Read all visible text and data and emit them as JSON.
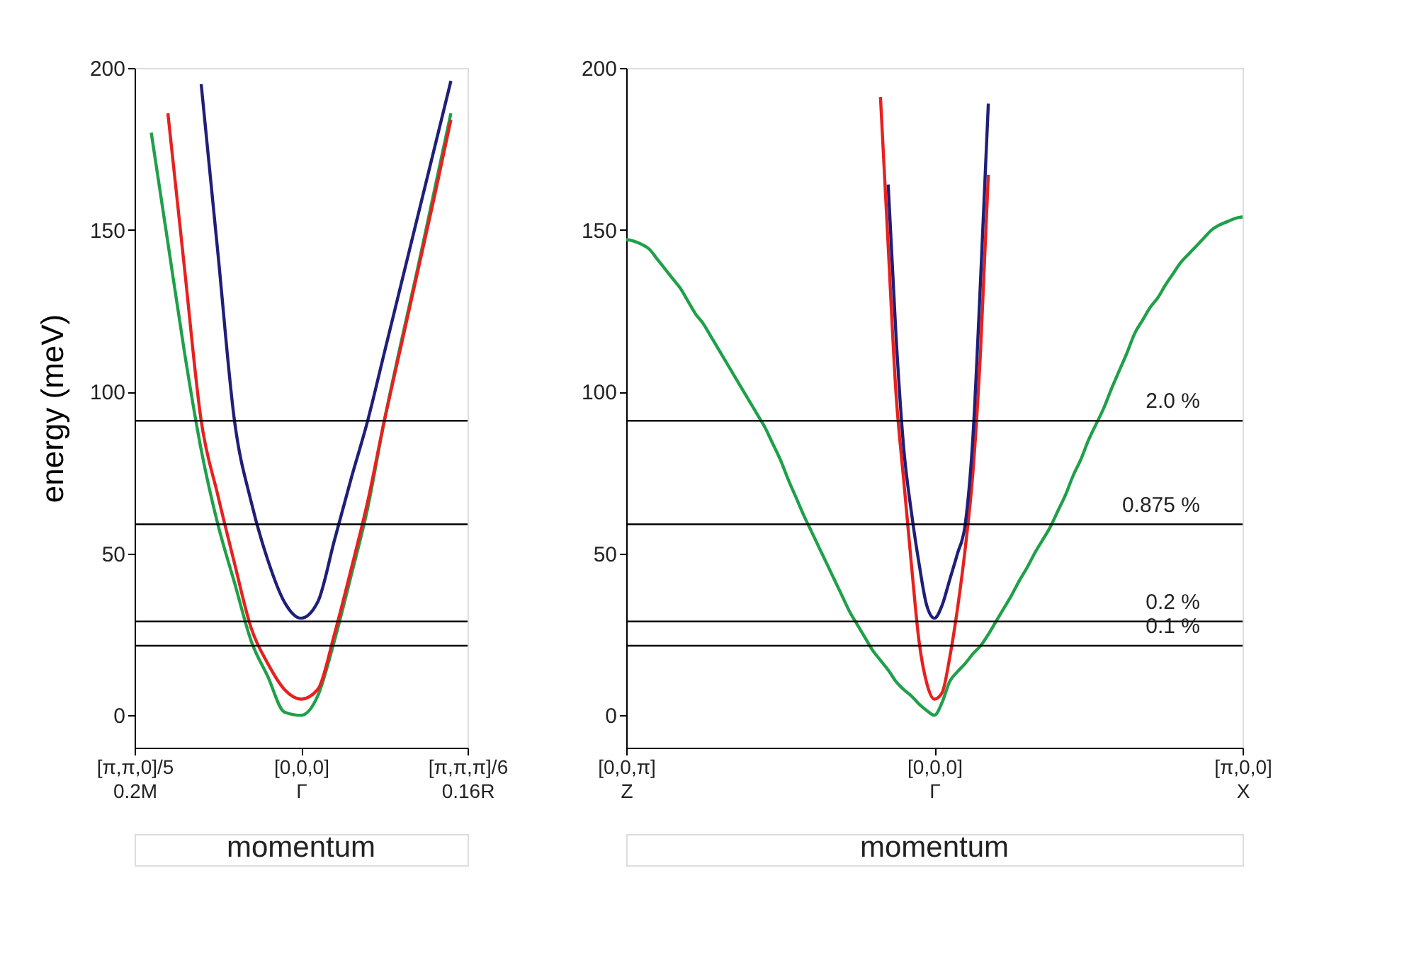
{
  "chart_data": [
    {
      "type": "line",
      "ylabel": "energy (meV)",
      "xlabel": "momentum",
      "ylim": [
        -10,
        200
      ],
      "yticks": [
        0,
        50,
        100,
        150,
        200
      ],
      "grid": false,
      "marker": "none",
      "line_style": "solid",
      "categories": [
        "[π,π,0]/5\n0.2M",
        null,
        null,
        null,
        null,
        null,
        null,
        null,
        null,
        null,
        "[0,0,0]\nΓ",
        null,
        null,
        null,
        null,
        null,
        null,
        null,
        null,
        null,
        "[π,π,π]/6\n0.16R"
      ],
      "series": [
        {
          "color": "#1fa04a",
          "values": [
            null,
            180,
            146,
            112,
            82,
            59,
            41,
            23,
            12,
            1,
            0,
            6,
            23,
            43,
            64,
            91,
            115,
            138,
            162,
            186,
            null
          ]
        },
        {
          "color": "#e8201e",
          "values": [
            null,
            null,
            186,
            138,
            91,
            68,
            47,
            27,
            16,
            8,
            5,
            8,
            25,
            45,
            66,
            91,
            114,
            137,
            160,
            184,
            null
          ]
        },
        {
          "color": "#1f1f7a",
          "values": [
            null,
            null,
            null,
            null,
            195,
            143,
            91,
            66,
            48,
            35,
            30,
            35,
            54,
            73,
            91,
            112,
            133,
            154,
            175,
            196,
            null
          ]
        }
      ],
      "ref_lines": [
        {
          "axis": "y",
          "value": 91
        },
        {
          "axis": "y",
          "value": 59
        },
        {
          "axis": "y",
          "value": 29
        },
        {
          "axis": "y",
          "value": 21.5
        }
      ]
    },
    {
      "type": "line",
      "xlabel": "momentum",
      "ylim": [
        -10,
        200
      ],
      "yticks": [
        0,
        50,
        100,
        150,
        200
      ],
      "grid": false,
      "marker": "none",
      "line_style": "solid",
      "categories": [
        "[0,0,π]\nZ",
        null,
        null,
        null,
        null,
        null,
        null,
        null,
        null,
        null,
        null,
        null,
        null,
        null,
        null,
        null,
        null,
        null,
        null,
        null,
        null,
        null,
        null,
        null,
        null,
        null,
        null,
        null,
        null,
        null,
        null,
        null,
        null,
        null,
        null,
        null,
        null,
        null,
        null,
        null,
        "[0,0,0]\nΓ",
        null,
        null,
        null,
        null,
        null,
        null,
        null,
        null,
        null,
        null,
        null,
        null,
        null,
        null,
        null,
        null,
        null,
        null,
        null,
        null,
        null,
        null,
        null,
        null,
        null,
        null,
        null,
        null,
        null,
        null,
        null,
        null,
        null,
        null,
        null,
        null,
        null,
        null,
        null,
        "[π,0,0]\nX"
      ],
      "series": [
        {
          "color": "#1fa04a",
          "values": [
            147,
            146.5,
            145.5,
            144,
            141,
            138,
            135,
            132,
            128,
            124,
            121,
            117,
            113,
            109,
            105,
            101,
            97,
            93,
            89,
            84,
            79,
            73,
            67.5,
            62,
            57,
            52,
            47,
            42,
            37,
            32,
            28,
            24,
            20,
            17,
            14,
            10.5,
            8,
            6,
            3.5,
            1.5,
            0,
            4,
            10.5,
            13.5,
            16,
            19,
            21.5,
            25,
            29,
            33,
            37,
            41.5,
            45.5,
            50,
            54,
            58,
            63,
            68,
            74,
            79,
            85,
            90,
            95,
            101,
            106.5,
            112,
            118,
            122,
            126,
            129,
            133,
            136.5,
            140,
            142.5,
            145,
            147.5,
            150,
            151.5,
            152.5,
            153.5,
            154
          ]
        },
        {
          "color": "#e8201e",
          "values": [
            null,
            null,
            null,
            null,
            null,
            null,
            null,
            null,
            null,
            null,
            null,
            null,
            null,
            null,
            null,
            null,
            null,
            null,
            null,
            null,
            null,
            null,
            null,
            null,
            null,
            null,
            null,
            null,
            null,
            null,
            null,
            null,
            null,
            191,
            145,
            100,
            73,
            47,
            23,
            10,
            5,
            7,
            18,
            33,
            51.5,
            75,
            113,
            167,
            null,
            null,
            null,
            null,
            null,
            null,
            null,
            null,
            null,
            null,
            null,
            null,
            null,
            null,
            null,
            null,
            null,
            null,
            null,
            null,
            null,
            null,
            null,
            null,
            null,
            null,
            null,
            null,
            null,
            null,
            null,
            null,
            null
          ]
        },
        {
          "color": "#1f1f7a",
          "values": [
            null,
            null,
            null,
            null,
            null,
            null,
            null,
            null,
            null,
            null,
            null,
            null,
            null,
            null,
            null,
            null,
            null,
            null,
            null,
            null,
            null,
            null,
            null,
            null,
            null,
            null,
            null,
            null,
            null,
            null,
            null,
            null,
            null,
            null,
            164,
            118,
            83,
            63,
            47,
            34,
            30,
            34,
            42,
            50,
            59,
            86,
            135,
            189,
            null,
            null,
            null,
            null,
            null,
            null,
            null,
            null,
            null,
            null,
            null,
            null,
            null,
            null,
            null,
            null,
            null,
            null,
            null,
            null,
            null,
            null,
            null,
            null,
            null,
            null,
            null,
            null,
            null,
            null,
            null,
            null,
            null
          ]
        }
      ],
      "ref_lines": [
        {
          "axis": "y",
          "value": 91
        },
        {
          "axis": "y",
          "value": 59
        },
        {
          "axis": "y",
          "value": 29
        },
        {
          "axis": "y",
          "value": 21.5
        }
      ],
      "annotations": [
        "2.0 %",
        "0.875 %",
        "0.2 %",
        "0.1 %"
      ]
    }
  ]
}
